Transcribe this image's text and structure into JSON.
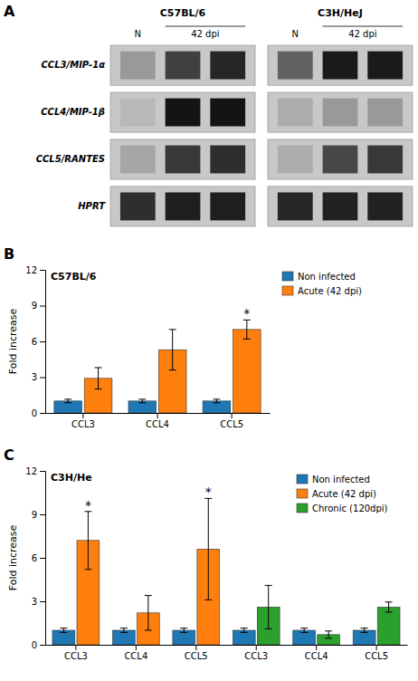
{
  "chart_data": [
    {
      "type": "heatmap",
      "title": "A",
      "color": "#c8c8c8",
      "categories": [
        "CCL3/MIP-1α",
        "CCL4/MIP-1β",
        "CCL5/RANTES",
        "HPRT"
      ],
      "series": [
        {
          "name": "C57BL/6",
          "x": [
            "N",
            "42 dpi",
            null
          ],
          "values": [
            [
              0.6,
              0.25,
              0.15
            ],
            [
              0.72,
              0.08,
              0.08
            ],
            [
              0.65,
              0.22,
              0.18
            ],
            [
              0.18,
              0.12,
              0.12
            ]
          ]
        },
        {
          "name": "C3H/HeJ",
          "x": [
            "N",
            "42 dpi",
            null
          ],
          "values": [
            [
              0.38,
              0.1,
              0.1
            ],
            [
              0.68,
              0.6,
              0.6
            ],
            [
              0.68,
              0.28,
              0.22
            ],
            [
              0.15,
              0.13,
              0.13
            ]
          ]
        }
      ]
    },
    {
      "type": "bar",
      "title": "B",
      "subtitle": "C57BL/6",
      "ylabel": "Fold increase",
      "ylim": [
        0,
        12
      ],
      "yticks": [
        0,
        3,
        6,
        9,
        12
      ],
      "grid": false,
      "legend": "right",
      "categories": [
        "CCL3",
        "CCL4",
        "CCL5"
      ],
      "series": [
        {
          "name": "Non infected",
          "values": [
            1.0,
            1.0,
            1.0
          ],
          "errors": [
            0.15,
            0.15,
            0.15
          ]
        },
        {
          "name": "Acute (42 dpi)",
          "values": [
            2.9,
            5.3,
            7.0
          ],
          "errors": [
            0.9,
            1.7,
            0.8
          ]
        }
      ],
      "annotations": [
        {
          "text": "*",
          "series": "Acute (42 dpi)",
          "category": "CCL5"
        }
      ]
    },
    {
      "type": "bar",
      "title": "C",
      "subtitle": "C3H/He",
      "ylabel": "Fold increase",
      "ylim": [
        0,
        12
      ],
      "yticks": [
        0,
        3,
        6,
        9,
        12
      ],
      "grid": false,
      "legend": "upper right",
      "categories": [
        "CCL3",
        "CCL4",
        "CCL5",
        "CCL3",
        "CCL4",
        "CCL5"
      ],
      "series": [
        {
          "name": "Non infected",
          "values": [
            1.0,
            1.0,
            1.0,
            1.0,
            1.0,
            1.0
          ],
          "errors": [
            0.15,
            0.15,
            0.15,
            0.15,
            0.15,
            0.15
          ]
        },
        {
          "name": "Acute (42 dpi)",
          "values": [
            7.2,
            2.2,
            6.6,
            null,
            null,
            null
          ],
          "errors": [
            2.0,
            1.2,
            3.5,
            null,
            null,
            null
          ]
        },
        {
          "name": "Chronic (120dpi)",
          "values": [
            null,
            null,
            null,
            2.6,
            0.7,
            2.6
          ],
          "errors": [
            null,
            null,
            null,
            1.5,
            0.25,
            0.35
          ]
        }
      ],
      "annotations": [
        {
          "text": "*",
          "series": "Acute (42 dpi)",
          "category": "CCL3"
        },
        {
          "text": "*",
          "series": "Acute (42 dpi)",
          "category": "CCL5"
        }
      ]
    }
  ]
}
